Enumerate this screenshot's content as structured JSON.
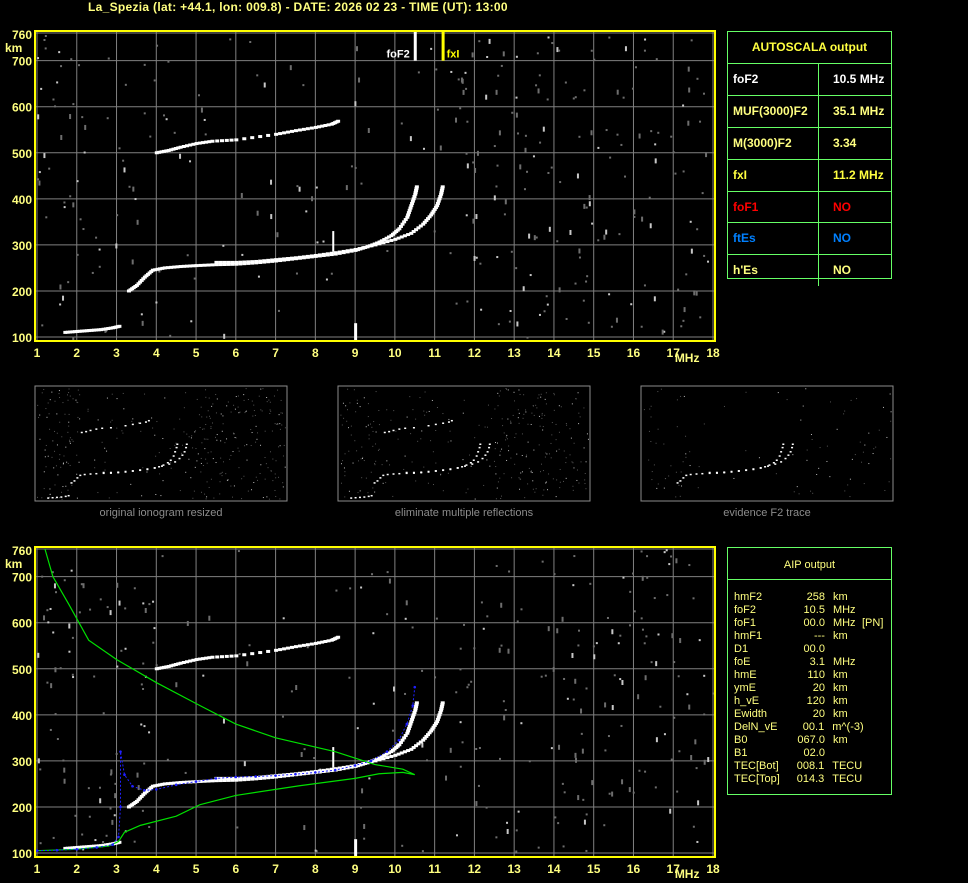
{
  "title": "La_Spezia (lat: +44.1, lon: 009.8) - DATE: 2026 02 23 - TIME (UT): 13:00",
  "colors": {
    "axis": "#ffff00",
    "grid": "#808080",
    "trace": "#ffffff",
    "profile": "#00e000",
    "fit": "#2020ff",
    "table_border": "#66ff66",
    "text_yellow": "#ffff80",
    "red": "#ff0000",
    "blue": "#0080ff"
  },
  "autoscala": {
    "title": "AUTOSCALA output",
    "rows": [
      {
        "key": "foF2",
        "value": "10.5 MHz",
        "color": "#ffffff"
      },
      {
        "key": "MUF(3000)F2",
        "value": "35.1 MHz",
        "color": "#ffff80"
      },
      {
        "key": "M(3000)F2",
        "value": "3.34",
        "color": "#ffff80"
      },
      {
        "key": "fxI",
        "value": "11.2 MHz",
        "color": "#ffff40"
      },
      {
        "key": "foF1",
        "value": "NO",
        "color": "#ff0000"
      },
      {
        "key": "ftEs",
        "value": "NO",
        "color": "#0080ff"
      },
      {
        "key": "h'Es",
        "value": "NO",
        "color": "#ffff80"
      }
    ]
  },
  "aip": {
    "title": "AIP output",
    "rows": [
      [
        "hmF2",
        "258",
        "km",
        ""
      ],
      [
        "foF2",
        "10.5",
        "MHz",
        ""
      ],
      [
        "foF1",
        "00.0",
        "MHz",
        "[PN]"
      ],
      [
        "hmF1",
        "---",
        "km",
        ""
      ],
      [
        "D1",
        "00.0",
        "",
        ""
      ],
      [
        "foE",
        "3.1",
        "MHz",
        ""
      ],
      [
        "hmE",
        "110",
        "km",
        ""
      ],
      [
        "ymE",
        "20",
        "km",
        ""
      ],
      [
        "h_vE",
        "120",
        "km",
        ""
      ],
      [
        "Ewidth",
        "20",
        "km",
        ""
      ],
      [
        "DelN_vE",
        "00.1",
        "m^(-3)",
        ""
      ],
      [
        "B0",
        "067.0",
        "km",
        ""
      ],
      [
        "B1",
        "02.0",
        "",
        ""
      ],
      [
        "TEC[Bot]",
        "008.1",
        "TECU",
        ""
      ],
      [
        "TEC[Top]",
        "014.3",
        "TECU",
        ""
      ]
    ]
  },
  "thumbnails": [
    {
      "caption": "original ionogram resized"
    },
    {
      "caption": "eliminate multiple reflections"
    },
    {
      "caption": "evidence F2 trace"
    }
  ],
  "chart_data": [
    {
      "type": "scatter",
      "xlim": [
        1,
        18
      ],
      "ylim": [
        100,
        760
      ],
      "x_ticks": [
        "1",
        "2",
        "3",
        "4",
        "5",
        "6",
        "7",
        "8",
        "9",
        "10",
        "11",
        "12",
        "13",
        "14",
        "15",
        "16",
        "17",
        "18"
      ],
      "y_ticks": [
        "100",
        "200",
        "300",
        "400",
        "500",
        "600",
        "700",
        "760"
      ],
      "xlabel": "MHz",
      "ylabel": "km",
      "grid": true,
      "markers": [
        {
          "label": "foF2",
          "x": 10.5,
          "color": "#ffffff"
        },
        {
          "label": "fxI",
          "x": 11.2,
          "color": "#ffff00"
        }
      ],
      "series": [
        {
          "points": [
            [
              1.7,
              110
            ],
            [
              2,
              112
            ],
            [
              2.3,
              114
            ],
            [
              2.6,
              116
            ],
            [
              2.9,
              120
            ],
            [
              3.1,
              124
            ]
          ]
        },
        {
          "points": [
            [
              3.3,
              200
            ],
            [
              3.5,
              212
            ],
            [
              3.7,
              230
            ],
            [
              3.9,
              245
            ],
            [
              4.2,
              250
            ],
            [
              4.6,
              253
            ],
            [
              5,
              255
            ],
            [
              5.5,
              257
            ],
            [
              6,
              258
            ],
            [
              6.5,
              261
            ],
            [
              7,
              265
            ],
            [
              7.5,
              270
            ],
            [
              8,
              275
            ],
            [
              8.5,
              280
            ],
            [
              9,
              288
            ],
            [
              9.3,
              296
            ],
            [
              9.6,
              306
            ],
            [
              9.9,
              320
            ],
            [
              10.1,
              335
            ],
            [
              10.3,
              360
            ],
            [
              10.4,
              385
            ],
            [
              10.5,
              410
            ],
            [
              10.55,
              430
            ]
          ]
        },
        {
          "points": [
            [
              5.5,
              262
            ],
            [
              6,
              262
            ],
            [
              6.5,
              264
            ],
            [
              7,
              268
            ],
            [
              7.5,
              272
            ],
            [
              8,
              277
            ],
            [
              8.5,
              283
            ],
            [
              9,
              290
            ],
            [
              9.5,
              300
            ],
            [
              10,
              312
            ],
            [
              10.4,
              325
            ],
            [
              10.7,
              345
            ],
            [
              10.9,
              365
            ],
            [
              11.05,
              385
            ],
            [
              11.15,
              410
            ],
            [
              11.2,
              430
            ]
          ]
        },
        {
          "points": [
            [
              4,
              500
            ],
            [
              4.3,
              505
            ],
            [
              4.6,
              512
            ],
            [
              5,
              520
            ],
            [
              5.4,
              525
            ],
            [
              6,
              528
            ],
            [
              7,
              540
            ],
            [
              7.5,
              548
            ],
            [
              8,
              555
            ],
            [
              8.4,
              562
            ],
            [
              8.6,
              570
            ]
          ]
        }
      ]
    },
    {
      "type": "scatter",
      "xlim": [
        1,
        18
      ],
      "ylim": [
        100,
        760
      ],
      "x_ticks": [
        "1",
        "2",
        "3",
        "4",
        "5",
        "6",
        "7",
        "8",
        "9",
        "10",
        "11",
        "12",
        "13",
        "14",
        "15",
        "16",
        "17",
        "18"
      ],
      "y_ticks": [
        "100",
        "200",
        "300",
        "400",
        "500",
        "600",
        "700",
        "760"
      ],
      "xlabel": "MHz",
      "ylabel": "km",
      "grid": true,
      "series": [
        {
          "points": [
            [
              1.7,
              110
            ],
            [
              2,
              112
            ],
            [
              2.3,
              114
            ],
            [
              2.6,
              116
            ],
            [
              2.9,
              120
            ],
            [
              3.1,
              124
            ]
          ]
        },
        {
          "points": [
            [
              3.3,
              200
            ],
            [
              3.5,
              212
            ],
            [
              3.7,
              230
            ],
            [
              3.9,
              245
            ],
            [
              4.2,
              250
            ],
            [
              4.6,
              253
            ],
            [
              5,
              255
            ],
            [
              5.5,
              257
            ],
            [
              6,
              258
            ],
            [
              6.5,
              261
            ],
            [
              7,
              265
            ],
            [
              7.5,
              270
            ],
            [
              8,
              275
            ],
            [
              8.5,
              280
            ],
            [
              9,
              288
            ],
            [
              9.3,
              296
            ],
            [
              9.6,
              306
            ],
            [
              9.9,
              320
            ],
            [
              10.1,
              335
            ],
            [
              10.3,
              360
            ],
            [
              10.4,
              385
            ],
            [
              10.5,
              410
            ],
            [
              10.55,
              430
            ]
          ]
        },
        {
          "points": [
            [
              5.5,
              262
            ],
            [
              6,
              262
            ],
            [
              6.5,
              264
            ],
            [
              7,
              268
            ],
            [
              7.5,
              272
            ],
            [
              8,
              277
            ],
            [
              8.5,
              283
            ],
            [
              9,
              290
            ],
            [
              9.5,
              300
            ],
            [
              10,
              312
            ],
            [
              10.4,
              325
            ],
            [
              10.7,
              345
            ],
            [
              10.9,
              365
            ],
            [
              11.05,
              385
            ],
            [
              11.15,
              410
            ],
            [
              11.2,
              430
            ]
          ]
        },
        {
          "points": [
            [
              4,
              500
            ],
            [
              4.3,
              505
            ],
            [
              4.6,
              512
            ],
            [
              5,
              520
            ],
            [
              5.4,
              525
            ],
            [
              6,
              528
            ],
            [
              7,
              540
            ],
            [
              7.5,
              548
            ],
            [
              8,
              555
            ],
            [
              8.4,
              562
            ],
            [
              8.6,
              570
            ]
          ]
        }
      ],
      "profile": [
        [
          1,
          105
        ],
        [
          2,
          108
        ],
        [
          2.8,
          115
        ],
        [
          3.05,
          125
        ],
        [
          3.2,
          145
        ],
        [
          3.6,
          160
        ],
        [
          4.5,
          180
        ],
        [
          5.1,
          205
        ],
        [
          6,
          225
        ],
        [
          7.6,
          246
        ],
        [
          9,
          262
        ],
        [
          9.6,
          272
        ],
        [
          10.2,
          275
        ],
        [
          10.5,
          270
        ],
        [
          10.2,
          282
        ],
        [
          9.5,
          292
        ],
        [
          8.5,
          320
        ],
        [
          7,
          350
        ],
        [
          6,
          380
        ],
        [
          5.1,
          420
        ],
        [
          4,
          470
        ],
        [
          3,
          520
        ],
        [
          2.3,
          562
        ],
        [
          1.8,
          640
        ],
        [
          1.4,
          700
        ],
        [
          1.2,
          760
        ]
      ],
      "fit": [
        [
          1,
          105
        ],
        [
          1.5,
          106
        ],
        [
          2,
          108
        ],
        [
          2.5,
          112
        ],
        [
          2.9,
          118
        ],
        [
          3.05,
          135
        ],
        [
          3.1,
          200
        ],
        [
          3.1,
          320
        ],
        [
          3.2,
          270
        ],
        [
          3.4,
          245
        ],
        [
          3.7,
          236
        ],
        [
          4,
          238
        ],
        [
          4.5,
          248
        ],
        [
          5,
          255
        ],
        [
          5.5,
          262
        ],
        [
          6,
          265
        ],
        [
          6.5,
          266
        ],
        [
          7,
          268
        ],
        [
          7.5,
          271
        ],
        [
          8,
          275
        ],
        [
          8.5,
          280
        ],
        [
          9,
          290
        ],
        [
          9.4,
          300
        ],
        [
          9.8,
          320
        ],
        [
          10.1,
          345
        ],
        [
          10.3,
          380
        ],
        [
          10.45,
          420
        ],
        [
          10.5,
          460
        ]
      ]
    }
  ]
}
